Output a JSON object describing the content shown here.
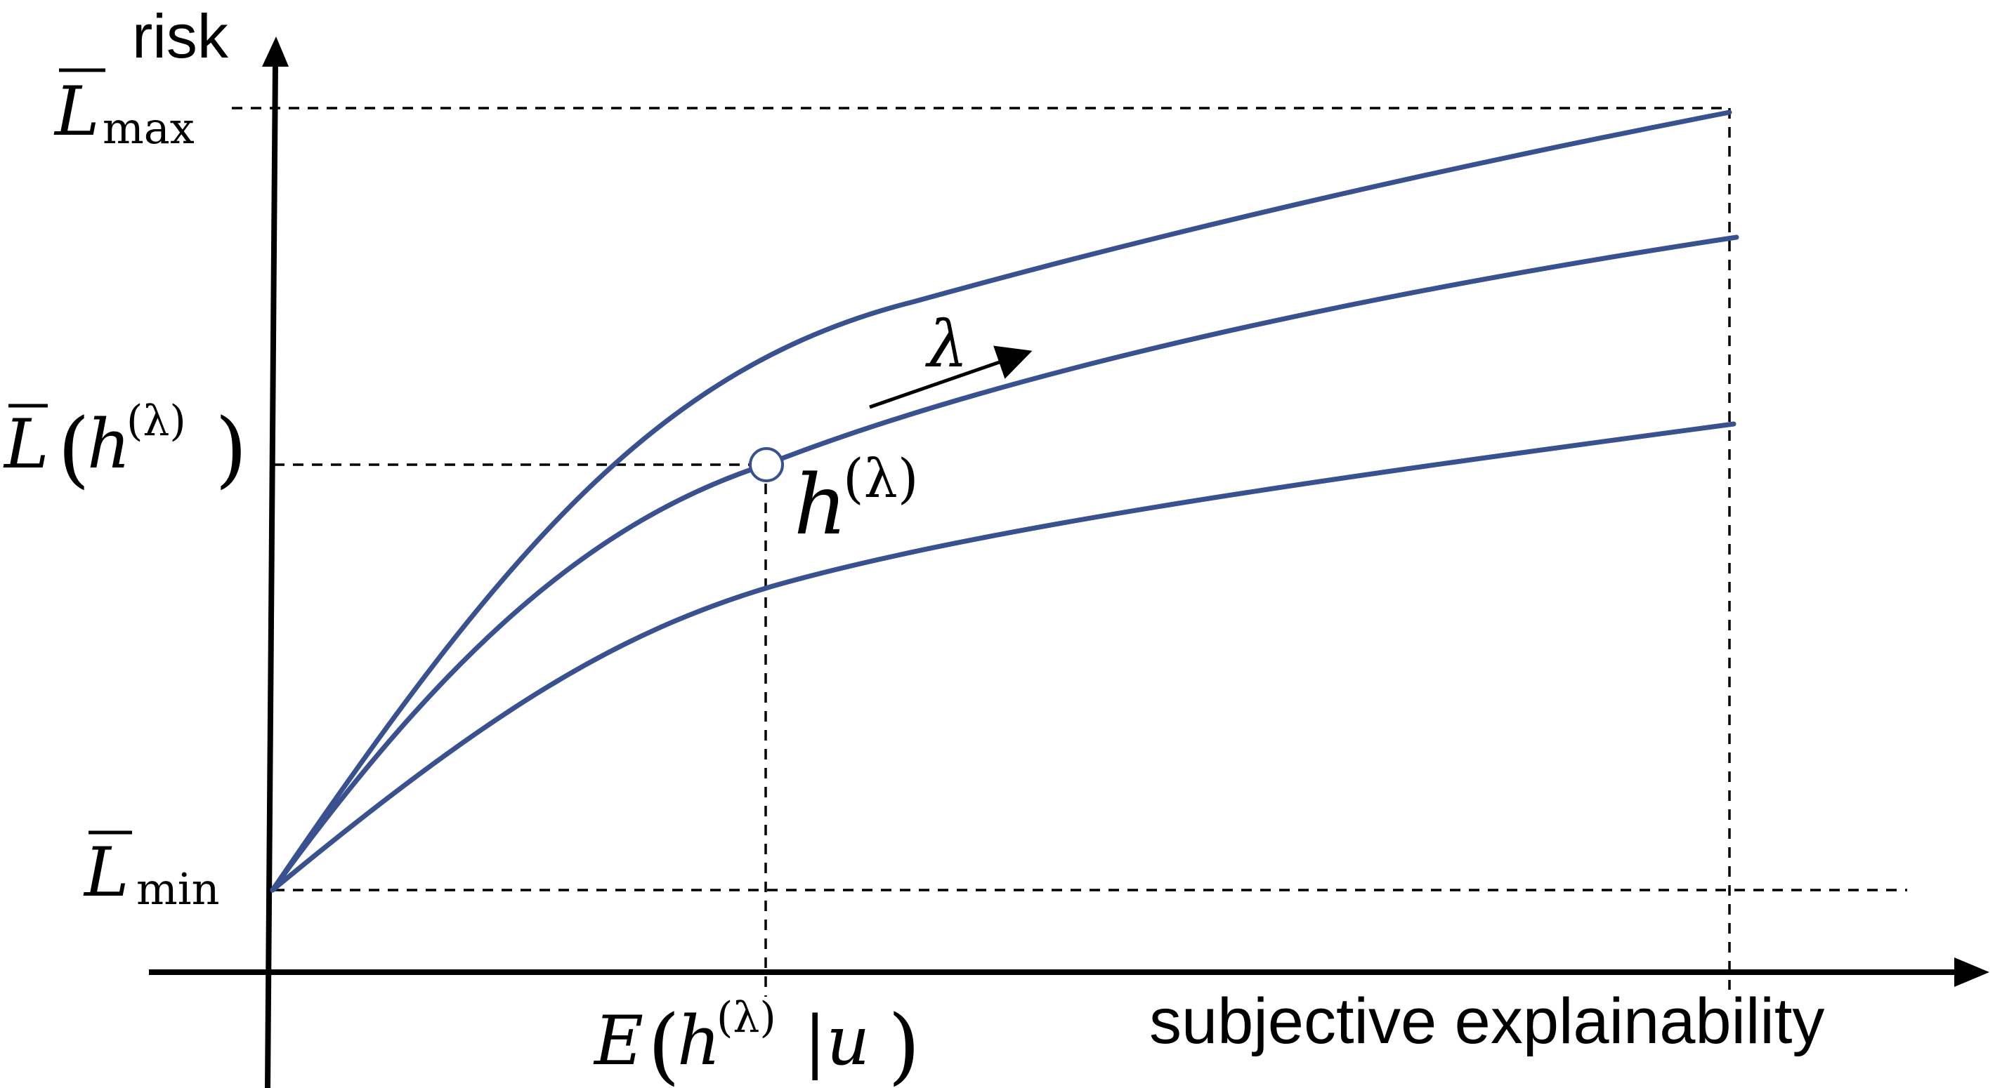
{
  "axes": {
    "y_label": "risk",
    "x_label": "subjective explainability"
  },
  "levels": {
    "l_max": {
      "symbol": "L",
      "subscript": "max"
    },
    "l_min": {
      "symbol": "L",
      "subscript": "min"
    },
    "l_h": {
      "symbol": "L",
      "arg": "h",
      "superscript": "(λ)"
    }
  },
  "annotations": {
    "point_label": {
      "symbol": "h",
      "superscript": "(λ)"
    },
    "param": "λ",
    "x_marker": {
      "func": "E",
      "arg": "h",
      "superscript": "(λ)",
      "condition": "|u"
    }
  },
  "colors": {
    "curve": "#3a5190",
    "axis": "#000000",
    "point_fill": "#ffffff"
  },
  "curves": [
    {
      "name": "",
      "tradeoff": "upper"
    },
    {
      "name": "",
      "tradeoff": "middle"
    },
    {
      "name": "",
      "tradeoff": "lower"
    }
  ]
}
